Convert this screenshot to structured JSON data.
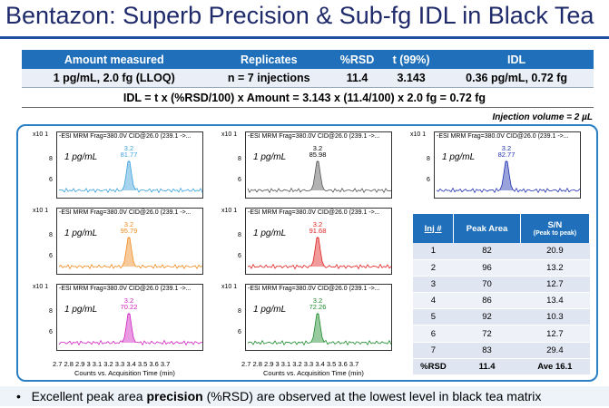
{
  "title": "Bentazon: Superb Precision & Sub-fg IDL in Black Tea",
  "summary": {
    "headers": [
      "Amount measured",
      "Replicates",
      "%RSD",
      "t (99%)",
      "IDL"
    ],
    "row": [
      "1 pg/mL, 2.0 fg (LLOQ)",
      "n = 7 injections",
      "11.4",
      "3.143",
      "0.36 pg/mL, 0.72 fg"
    ]
  },
  "formula": "IDL = t x (%RSD/100) x Amount = 3.143 x (11.4/100) x 2.0 fg = 0.72 fg",
  "injection_volume": "Injection volume = 2 µL",
  "chromatograms": [
    {
      "header": "-ESI MRM Frag=380.0V CID@26.0 (239.1 ->...",
      "exp": "x10 1",
      "conc": "1 pg/mL",
      "rt": "3.2",
      "area": "81.77",
      "color": "#3aa0dc",
      "y8": "8",
      "y6": "6"
    },
    {
      "header": "-ESI MRM Frag=380.0V CID@26.0 (239.1 ->...",
      "exp": "x10 1",
      "conc": "1 pg/mL",
      "rt": "3.2",
      "area": "85.98",
      "color": "#555555",
      "y8": "8",
      "y6": "6"
    },
    {
      "header": "-ESI MRM Frag=380.0V CID@26.0 (239.1 ->...",
      "exp": "x10 1",
      "conc": "1 pg/mL",
      "rt": "3.2",
      "area": "82.77",
      "color": "#2030b0",
      "y8": "8",
      "y6": "6"
    },
    {
      "header": "-ESI MRM Frag=380.0V CID@26.0 (239.1 ->...",
      "exp": "x10 1",
      "conc": "1 pg/mL",
      "rt": "3.2",
      "area": "95.79",
      "color": "#f08a1c",
      "y8": "8",
      "y6": "6"
    },
    {
      "header": "-ESI MRM Frag=380.0V CID@26.0 (239.1 ->...",
      "exp": "x10 1",
      "conc": "1 pg/mL",
      "rt": "3.2",
      "area": "91.68",
      "color": "#e02020",
      "y8": "8",
      "y6": "6"
    },
    {
      "header": "-ESI MRM Frag=380.0V CID@26.0 (239.1 ->...",
      "exp": "x10 1",
      "conc": "1 pg/mL",
      "rt": "3.2",
      "area": "70.22",
      "color": "#d020c0",
      "y8": "8",
      "y6": "6"
    },
    {
      "header": "-ESI MRM Frag=380.0V CID@26.0 (239.1 ->...",
      "exp": "x10 1",
      "conc": "1 pg/mL",
      "rt": "3.2",
      "area": "72.26",
      "color": "#1a8a2a",
      "y8": "8",
      "y6": "6"
    }
  ],
  "x_ticks": "2.7 2.8 2.9 3 3.1 3.2 3.3 3.4 3.5 3.6 3.7",
  "x_label": "Counts vs. Acquisition Time (min)",
  "sn_table": {
    "headers": [
      "Inj #",
      "Peak Area",
      "S/N"
    ],
    "sn_sub": "(Peak to peak)",
    "rows": [
      [
        "1",
        "82",
        "20.9"
      ],
      [
        "2",
        "96",
        "13.2"
      ],
      [
        "3",
        "70",
        "12.7"
      ],
      [
        "4",
        "86",
        "13.4"
      ],
      [
        "5",
        "92",
        "10.3"
      ],
      [
        "6",
        "72",
        "12.7"
      ],
      [
        "7",
        "83",
        "29.4"
      ]
    ],
    "footer": [
      "%RSD",
      "11.4",
      "Ave 16.1"
    ]
  },
  "bullet": {
    "pre": "Excellent peak area ",
    "bold": "precision",
    "post": " (%RSD) are observed at the lowest level in black tea matrix"
  }
}
